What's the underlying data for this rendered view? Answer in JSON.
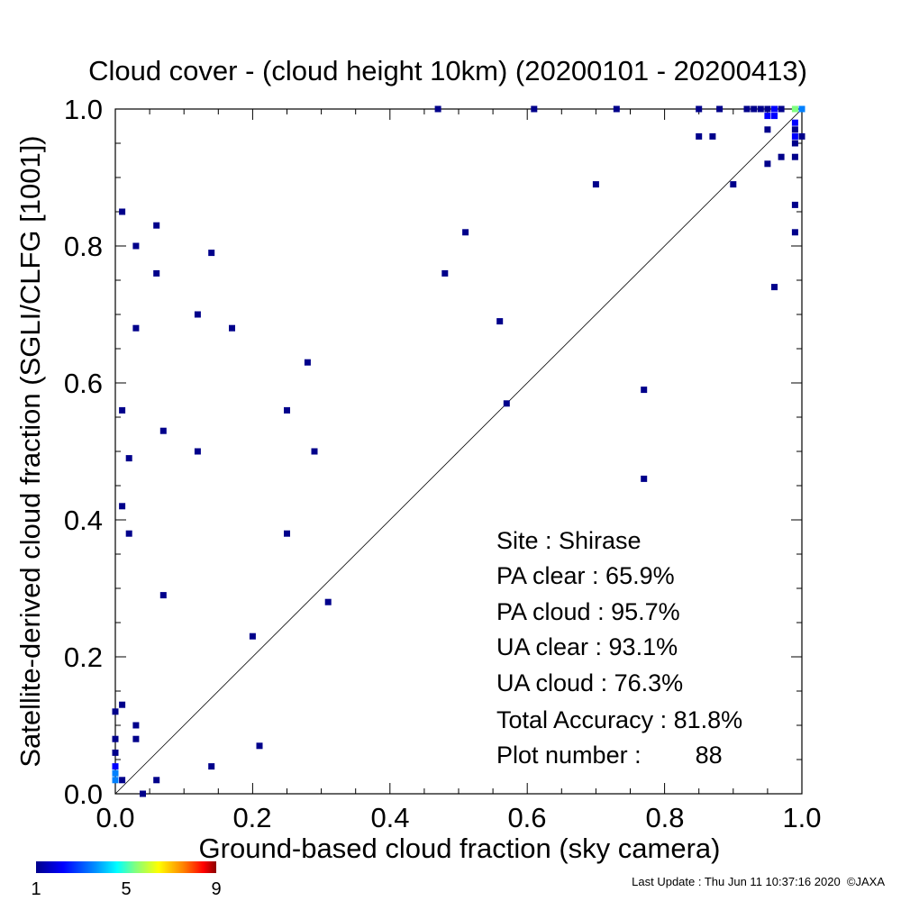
{
  "chart_data": {
    "type": "scatter",
    "title": "Cloud cover - (cloud height 10km)  (20200101 - 20200413)",
    "xlabel": "Ground-based cloud fraction (sky camera)",
    "ylabel": "Satellite-derived cloud fraction (SGLI/CLFG [1001])",
    "xlim": [
      0,
      1
    ],
    "ylim": [
      0,
      1
    ],
    "x_ticks": [
      "0.0",
      "0.2",
      "0.4",
      "0.6",
      "0.8",
      "1.0"
    ],
    "y_ticks": [
      "0.0",
      "0.2",
      "0.4",
      "0.6",
      "0.8",
      "1.0"
    ],
    "grid": false,
    "reference_line": "1:1 diagonal",
    "colorbar": {
      "ticks": [
        "1",
        "5",
        "9"
      ],
      "min": 1,
      "max": 9,
      "colors": [
        "#00008b",
        "#0000ff",
        "#0080ff",
        "#00ffff",
        "#80ff80",
        "#ffff00",
        "#ff8000",
        "#ff0000",
        "#8b0000"
      ]
    },
    "points": [
      {
        "x": 0.47,
        "y": 1.0,
        "count": 1
      },
      {
        "x": 0.61,
        "y": 1.0,
        "count": 1
      },
      {
        "x": 0.73,
        "y": 1.0,
        "count": 1
      },
      {
        "x": 0.85,
        "y": 1.0,
        "count": 1
      },
      {
        "x": 0.88,
        "y": 1.0,
        "count": 1
      },
      {
        "x": 0.92,
        "y": 1.0,
        "count": 1
      },
      {
        "x": 0.93,
        "y": 1.0,
        "count": 1
      },
      {
        "x": 0.94,
        "y": 1.0,
        "count": 1
      },
      {
        "x": 0.95,
        "y": 1.0,
        "count": 1
      },
      {
        "x": 0.96,
        "y": 1.0,
        "count": 2
      },
      {
        "x": 0.97,
        "y": 1.0,
        "count": 1
      },
      {
        "x": 0.99,
        "y": 1.0,
        "count": 5
      },
      {
        "x": 1.0,
        "y": 1.0,
        "count": 3
      },
      {
        "x": 0.95,
        "y": 0.99,
        "count": 2
      },
      {
        "x": 0.96,
        "y": 0.99,
        "count": 2
      },
      {
        "x": 0.99,
        "y": 0.98,
        "count": 2
      },
      {
        "x": 0.95,
        "y": 0.97,
        "count": 1
      },
      {
        "x": 0.99,
        "y": 0.97,
        "count": 1
      },
      {
        "x": 0.99,
        "y": 0.96,
        "count": 2
      },
      {
        "x": 1.0,
        "y": 0.96,
        "count": 1
      },
      {
        "x": 0.85,
        "y": 0.96,
        "count": 1
      },
      {
        "x": 0.87,
        "y": 0.96,
        "count": 1
      },
      {
        "x": 0.99,
        "y": 0.95,
        "count": 1
      },
      {
        "x": 0.97,
        "y": 0.93,
        "count": 1
      },
      {
        "x": 0.99,
        "y": 0.93,
        "count": 1
      },
      {
        "x": 0.95,
        "y": 0.92,
        "count": 1
      },
      {
        "x": 0.7,
        "y": 0.89,
        "count": 1
      },
      {
        "x": 0.9,
        "y": 0.89,
        "count": 1
      },
      {
        "x": 0.99,
        "y": 0.86,
        "count": 1
      },
      {
        "x": 0.01,
        "y": 0.85,
        "count": 1
      },
      {
        "x": 0.06,
        "y": 0.83,
        "count": 1
      },
      {
        "x": 0.51,
        "y": 0.82,
        "count": 1
      },
      {
        "x": 0.99,
        "y": 0.82,
        "count": 1
      },
      {
        "x": 0.03,
        "y": 0.8,
        "count": 1
      },
      {
        "x": 0.14,
        "y": 0.79,
        "count": 1
      },
      {
        "x": 0.06,
        "y": 0.76,
        "count": 1
      },
      {
        "x": 0.48,
        "y": 0.76,
        "count": 1
      },
      {
        "x": 0.96,
        "y": 0.74,
        "count": 1
      },
      {
        "x": 0.12,
        "y": 0.7,
        "count": 1
      },
      {
        "x": 0.56,
        "y": 0.69,
        "count": 1
      },
      {
        "x": 0.03,
        "y": 0.68,
        "count": 1
      },
      {
        "x": 0.17,
        "y": 0.68,
        "count": 1
      },
      {
        "x": 0.28,
        "y": 0.63,
        "count": 1
      },
      {
        "x": 0.77,
        "y": 0.59,
        "count": 1
      },
      {
        "x": 0.57,
        "y": 0.57,
        "count": 1
      },
      {
        "x": 0.01,
        "y": 0.56,
        "count": 1
      },
      {
        "x": 0.25,
        "y": 0.56,
        "count": 1
      },
      {
        "x": 0.07,
        "y": 0.53,
        "count": 1
      },
      {
        "x": 0.12,
        "y": 0.5,
        "count": 1
      },
      {
        "x": 0.29,
        "y": 0.5,
        "count": 1
      },
      {
        "x": 0.02,
        "y": 0.49,
        "count": 1
      },
      {
        "x": 0.77,
        "y": 0.46,
        "count": 1
      },
      {
        "x": 0.01,
        "y": 0.42,
        "count": 1
      },
      {
        "x": 0.02,
        "y": 0.38,
        "count": 1
      },
      {
        "x": 0.25,
        "y": 0.38,
        "count": 1
      },
      {
        "x": 0.07,
        "y": 0.29,
        "count": 1
      },
      {
        "x": 0.31,
        "y": 0.28,
        "count": 1
      },
      {
        "x": 0.2,
        "y": 0.23,
        "count": 1
      },
      {
        "x": 0.01,
        "y": 0.13,
        "count": 1
      },
      {
        "x": 0.0,
        "y": 0.12,
        "count": 1
      },
      {
        "x": 0.03,
        "y": 0.1,
        "count": 1
      },
      {
        "x": 0.0,
        "y": 0.08,
        "count": 1
      },
      {
        "x": 0.03,
        "y": 0.08,
        "count": 1
      },
      {
        "x": 0.21,
        "y": 0.07,
        "count": 1
      },
      {
        "x": 0.0,
        "y": 0.06,
        "count": 1
      },
      {
        "x": 0.14,
        "y": 0.04,
        "count": 1
      },
      {
        "x": 0.0,
        "y": 0.04,
        "count": 2
      },
      {
        "x": 0.0,
        "y": 0.03,
        "count": 3
      },
      {
        "x": 0.0,
        "y": 0.02,
        "count": 3
      },
      {
        "x": 0.01,
        "y": 0.02,
        "count": 1
      },
      {
        "x": 0.06,
        "y": 0.02,
        "count": 1
      },
      {
        "x": 0.04,
        "y": 0.0,
        "count": 1
      }
    ]
  },
  "stats": {
    "site": "Site : Shirase",
    "pa_clear": "PA clear :  65.9%",
    "pa_cloud": "PA cloud :  95.7%",
    "ua_clear": "UA clear :  93.1%",
    "ua_cloud": "UA cloud :  76.3%",
    "total_accuracy": "Total Accuracy :  81.8%",
    "plot_number": "Plot number :        88"
  },
  "footer": {
    "last_update": "Last Update : Thu Jun 11 10:37:16 2020  ©JAXA"
  }
}
